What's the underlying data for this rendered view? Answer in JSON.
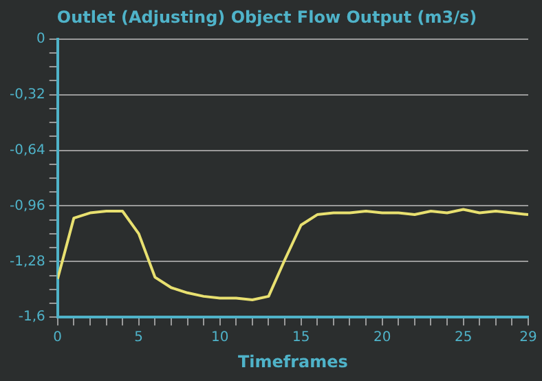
{
  "chart_data": {
    "type": "line",
    "title": "Outlet (Adjusting) Object Flow Output (m3/s)",
    "xlabel": "Timeframes",
    "x": [
      0,
      1,
      2,
      3,
      4,
      5,
      6,
      7,
      8,
      9,
      10,
      11,
      12,
      13,
      14,
      15,
      16,
      17,
      18,
      19,
      20,
      21,
      22,
      23,
      24,
      25,
      26,
      27,
      28,
      29
    ],
    "series": [
      {
        "color": "#e8e070",
        "values": [
          -1.38,
          -1.03,
          -1.0,
          -0.99,
          -0.99,
          -1.12,
          -1.37,
          -1.43,
          -1.46,
          -1.48,
          -1.49,
          -1.49,
          -1.5,
          -1.48,
          -1.27,
          -1.07,
          -1.01,
          -1.0,
          -1.0,
          -0.99,
          -1.0,
          -1.0,
          -1.01,
          -0.99,
          -1.0,
          -0.98,
          -1.0,
          -0.99,
          -1.0,
          -1.01
        ]
      }
    ],
    "xlim": [
      0,
      29
    ],
    "xticks": [
      0,
      {
        "value": 1,
        "label": null
      },
      {
        "value": 2,
        "label": null
      },
      {
        "value": 3,
        "label": null
      },
      {
        "value": 4,
        "label": null
      },
      5,
      {
        "value": 6,
        "label": null
      },
      {
        "value": 7,
        "label": null
      },
      {
        "value": 8,
        "label": null
      },
      {
        "value": 9,
        "label": null
      },
      10,
      {
        "value": 11,
        "label": null
      },
      {
        "value": 12,
        "label": null
      },
      {
        "value": 13,
        "label": null
      },
      {
        "value": 14,
        "label": null
      },
      15,
      {
        "value": 16,
        "label": null
      },
      {
        "value": 17,
        "label": null
      },
      {
        "value": 18,
        "label": null
      },
      {
        "value": 19,
        "label": null
      },
      20,
      {
        "value": 21,
        "label": null
      },
      {
        "value": 22,
        "label": null
      },
      {
        "value": 23,
        "label": null
      },
      {
        "value": 24,
        "label": null
      },
      25,
      {
        "value": 26,
        "label": null
      },
      {
        "value": 27,
        "label": null
      },
      {
        "value": 28,
        "label": null
      },
      29
    ],
    "ylim": [
      -1.6,
      0
    ],
    "yticks": [
      0,
      {
        "value": -0.08,
        "label": null
      },
      {
        "value": -0.16,
        "label": null
      },
      {
        "value": -0.24,
        "label": null
      },
      {
        "value": -0.32,
        "label": "-0,32"
      },
      {
        "value": -0.4,
        "label": null
      },
      {
        "value": -0.48,
        "label": null
      },
      {
        "value": -0.56,
        "label": null
      },
      {
        "value": -0.64,
        "label": "-0,64"
      },
      {
        "value": -0.72,
        "label": null
      },
      {
        "value": -0.8,
        "label": null
      },
      {
        "value": -0.88,
        "label": null
      },
      {
        "value": -0.96,
        "label": "-0,96"
      },
      {
        "value": -1.04,
        "label": null
      },
      {
        "value": -1.12,
        "label": null
      },
      {
        "value": -1.2,
        "label": null
      },
      {
        "value": -1.28,
        "label": "-1,28"
      },
      {
        "value": -1.36,
        "label": null
      },
      {
        "value": -1.44,
        "label": null
      },
      {
        "value": -1.52,
        "label": null
      },
      {
        "value": -1.6,
        "label": "-1,6"
      }
    ],
    "grid": "y",
    "legend": false,
    "marker": "none",
    "line_style": "solid"
  }
}
